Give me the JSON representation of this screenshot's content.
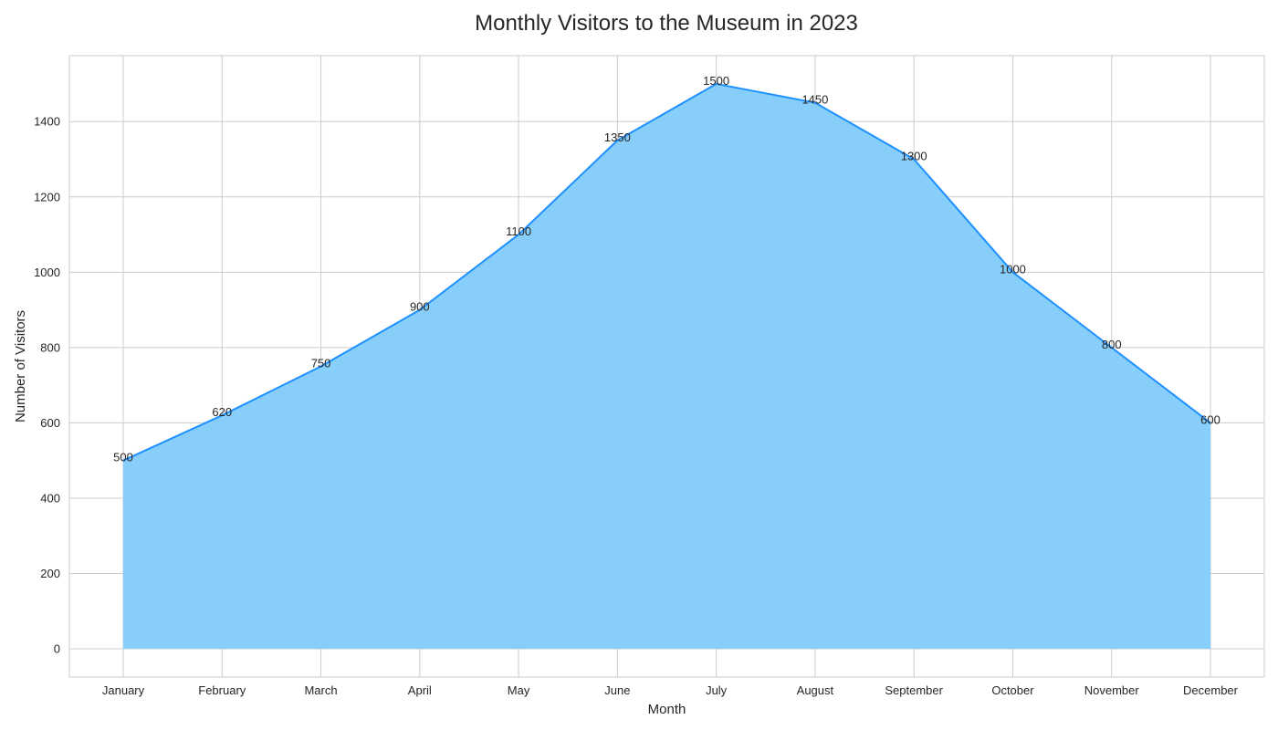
{
  "chart_data": {
    "type": "area",
    "title": "Monthly Visitors to the Museum in 2023",
    "xlabel": "Month",
    "ylabel": "Number of Visitors",
    "categories": [
      "January",
      "February",
      "March",
      "April",
      "May",
      "June",
      "July",
      "August",
      "September",
      "October",
      "November",
      "December"
    ],
    "series": [
      {
        "values": [
          500,
          620,
          750,
          900,
          1100,
          1350,
          1500,
          1450,
          1300,
          1000,
          800,
          600
        ]
      }
    ],
    "data_labels": [
      "500",
      "620",
      "750",
      "900",
      "1100",
      "1350",
      "1500",
      "1450",
      "1300",
      "1000",
      "800",
      "600"
    ],
    "ylim": [
      -75,
      1575
    ],
    "y_ticks": [
      0,
      200,
      400,
      600,
      800,
      1000,
      1200,
      1400
    ],
    "y_tick_labels": [
      "0",
      "200",
      "400",
      "600",
      "800",
      "1000",
      "1200",
      "1400"
    ],
    "grid": true,
    "legend": "none",
    "colors": {
      "fill": "#87CEFA",
      "line": "#1E90FF",
      "grid": "#CCCCCC",
      "text": "#262626"
    }
  }
}
